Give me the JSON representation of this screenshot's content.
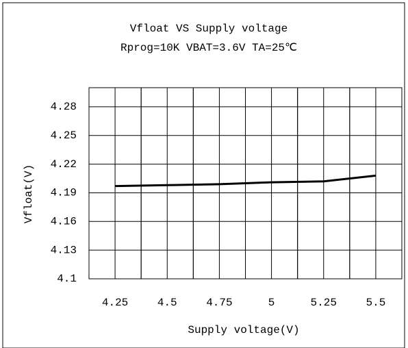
{
  "chart_data": {
    "type": "line",
    "title": "Vfloat VS Supply voltage",
    "subtitle": "Rprog=10K VBAT=3.6V TA=25℃",
    "x_label": "Supply voltage(V)",
    "y_label": "Vfloat(V)",
    "x": [
      4.25,
      4.5,
      4.75,
      5,
      5.25,
      5.5
    ],
    "series": [
      {
        "name": "Vfloat",
        "color": "#000000",
        "values": [
          4.197,
          4.198,
          4.199,
          4.201,
          4.202,
          4.208
        ]
      }
    ],
    "xlim": [
      4.125,
      5.625
    ],
    "xticks": [
      4.25,
      4.5,
      4.75,
      5,
      5.25,
      5.5
    ],
    "ylim": [
      4.1,
      4.3
    ],
    "yticks": [
      4.1,
      4.13,
      4.16,
      4.19,
      4.22,
      4.25,
      4.28
    ],
    "grid": true
  }
}
